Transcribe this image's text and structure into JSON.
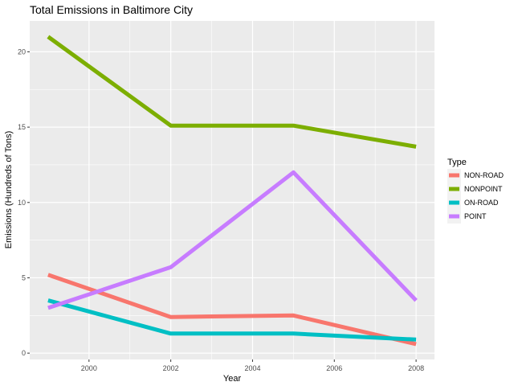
{
  "chart_data": {
    "type": "line",
    "title": "Total Emissions in Baltimore City",
    "xlabel": "Year",
    "ylabel": "Emissions (Hundreds of Tons)",
    "x": [
      1999,
      2002,
      2005,
      2008
    ],
    "xlim": [
      1998.55,
      2008.45
    ],
    "ylim": [
      -0.42,
      22.05
    ],
    "xticks": [
      2000,
      2002,
      2004,
      2006,
      2008
    ],
    "yticks": [
      0,
      5,
      10,
      15,
      20
    ],
    "grid": true,
    "legend_title": "Type",
    "legend_position": "right",
    "series": [
      {
        "name": "NON-ROAD",
        "color": "#F8766D",
        "values": [
          5.2,
          2.4,
          2.5,
          0.6
        ]
      },
      {
        "name": "NONPOINT",
        "color": "#7CAE00",
        "values": [
          21.0,
          15.1,
          15.1,
          13.7
        ]
      },
      {
        "name": "ON-ROAD",
        "color": "#00BFC4",
        "values": [
          3.5,
          1.3,
          1.3,
          0.9
        ]
      },
      {
        "name": "POINT",
        "color": "#C77CFF",
        "values": [
          3.0,
          5.7,
          12.0,
          3.5
        ]
      }
    ]
  }
}
